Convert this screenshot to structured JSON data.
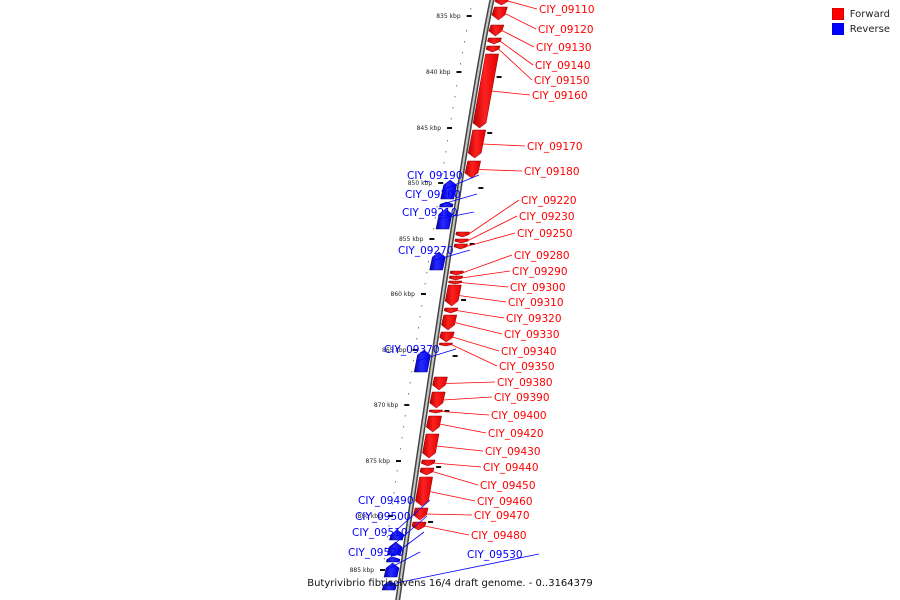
{
  "legend": {
    "forward_label": "Forward",
    "reverse_label": "Reverse",
    "forward_color": "#ff0000",
    "reverse_color": "#0000ff"
  },
  "caption": "Butyrivibrio fibrisolvens 16/4 draft genome. - 0..3164379",
  "ruler": [
    {
      "label": "835 kbp",
      "kb": 835
    },
    {
      "label": "840 kbp",
      "kb": 840
    },
    {
      "label": "845 kbp",
      "kb": 845
    },
    {
      "label": "850 kbp",
      "kb": 850
    },
    {
      "label": "855 kbp",
      "kb": 855
    },
    {
      "label": "860 kbp",
      "kb": 860
    },
    {
      "label": "865 kbp",
      "kb": 865
    },
    {
      "label": "870 kbp",
      "kb": 870
    },
    {
      "label": "875 kbp",
      "kb": 875
    },
    {
      "label": "880 kbp",
      "kb": 880
    },
    {
      "label": "885 kbp",
      "kb": 885
    }
  ],
  "genes": [
    {
      "name": "CIY_09110",
      "strand": "forward"
    },
    {
      "name": "CIY_09120",
      "strand": "forward"
    },
    {
      "name": "CIY_09130",
      "strand": "forward"
    },
    {
      "name": "CIY_09140",
      "strand": "forward"
    },
    {
      "name": "CIY_09150",
      "strand": "forward"
    },
    {
      "name": "CIY_09160",
      "strand": "forward"
    },
    {
      "name": "CIY_09170",
      "strand": "forward"
    },
    {
      "name": "CIY_09180",
      "strand": "forward"
    },
    {
      "name": "CIY_09190",
      "strand": "reverse"
    },
    {
      "name": "CIY_09200",
      "strand": "reverse"
    },
    {
      "name": "CIY_09210",
      "strand": "reverse"
    },
    {
      "name": "CIY_09220",
      "strand": "forward"
    },
    {
      "name": "CIY_09230",
      "strand": "forward"
    },
    {
      "name": "CIY_09250",
      "strand": "forward"
    },
    {
      "name": "CIY_09270",
      "strand": "reverse"
    },
    {
      "name": "CIY_09280",
      "strand": "forward"
    },
    {
      "name": "CIY_09290",
      "strand": "forward"
    },
    {
      "name": "CIY_09300",
      "strand": "forward"
    },
    {
      "name": "CIY_09310",
      "strand": "forward"
    },
    {
      "name": "CIY_09320",
      "strand": "forward"
    },
    {
      "name": "CIY_09330",
      "strand": "forward"
    },
    {
      "name": "CIY_09340",
      "strand": "forward"
    },
    {
      "name": "CIY_09350",
      "strand": "forward"
    },
    {
      "name": "CIY_09370",
      "strand": "reverse"
    },
    {
      "name": "CIY_09380",
      "strand": "forward"
    },
    {
      "name": "CIY_09390",
      "strand": "forward"
    },
    {
      "name": "CIY_09400",
      "strand": "forward"
    },
    {
      "name": "CIY_09420",
      "strand": "forward"
    },
    {
      "name": "CIY_09430",
      "strand": "forward"
    },
    {
      "name": "CIY_09440",
      "strand": "forward"
    },
    {
      "name": "CIY_09450",
      "strand": "forward"
    },
    {
      "name": "CIY_09460",
      "strand": "forward"
    },
    {
      "name": "CIY_09470",
      "strand": "forward"
    },
    {
      "name": "CIY_09480",
      "strand": "forward"
    },
    {
      "name": "CIY_09490",
      "strand": "reverse"
    },
    {
      "name": "CIY_09500",
      "strand": "reverse"
    },
    {
      "name": "CIY_09510",
      "strand": "reverse"
    },
    {
      "name": "CIY_09520",
      "strand": "reverse"
    },
    {
      "name": "CIY_09530",
      "strand": "reverse"
    }
  ]
}
